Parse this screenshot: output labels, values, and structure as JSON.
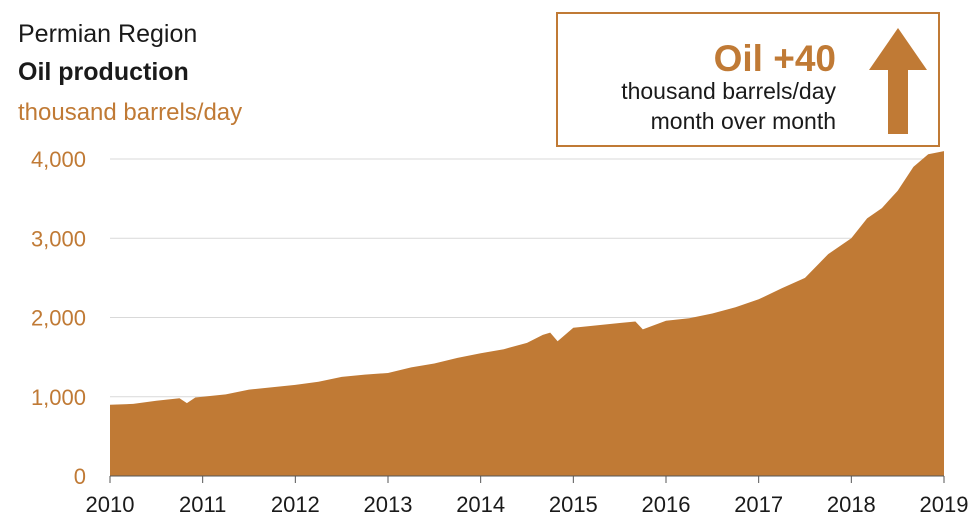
{
  "header": {
    "region": "Permian Region",
    "title": "Oil production",
    "unit": "thousand barrels/day"
  },
  "callout": {
    "headline": "Oil +40",
    "line1": "thousand barrels/day",
    "line2": "month over month",
    "arrow_icon": "up-arrow-icon"
  },
  "colors": {
    "area": "#c07a35",
    "accent_text": "#c07a35",
    "grid": "#d9d9d9",
    "text": "#1a1a1a"
  },
  "chart_data": {
    "type": "area",
    "title": "Oil production",
    "subtitle": "Permian Region",
    "xlabel": "",
    "ylabel": "thousand barrels/day",
    "ylim": [
      0,
      4000
    ],
    "xlim": [
      2010,
      2019
    ],
    "grid": true,
    "legend": "none",
    "yticks": [
      {
        "value": 0,
        "label": "0"
      },
      {
        "value": 1000,
        "label": "1,000"
      },
      {
        "value": 2000,
        "label": "2,000"
      },
      {
        "value": 3000,
        "label": "3,000"
      },
      {
        "value": 4000,
        "label": "4,000"
      }
    ],
    "xticks": [
      {
        "value": 2010,
        "label": "2010"
      },
      {
        "value": 2011,
        "label": "2011"
      },
      {
        "value": 2012,
        "label": "2012"
      },
      {
        "value": 2013,
        "label": "2013"
      },
      {
        "value": 2014,
        "label": "2014"
      },
      {
        "value": 2015,
        "label": "2015"
      },
      {
        "value": 2016,
        "label": "2016"
      },
      {
        "value": 2017,
        "label": "2017"
      },
      {
        "value": 2018,
        "label": "2018"
      },
      {
        "value": 2019,
        "label": "2019"
      }
    ],
    "series": [
      {
        "x": [
          2010.0,
          2010.25,
          2010.5,
          2010.75,
          2010.83,
          2010.92,
          2011.0,
          2011.25,
          2011.5,
          2011.75,
          2012.0,
          2012.25,
          2012.5,
          2012.75,
          2013.0,
          2013.25,
          2013.5,
          2013.75,
          2014.0,
          2014.25,
          2014.5,
          2014.67,
          2014.75,
          2014.83,
          2015.0,
          2015.25,
          2015.5,
          2015.67,
          2015.75,
          2016.0,
          2016.25,
          2016.5,
          2016.75,
          2017.0,
          2017.25,
          2017.5,
          2017.75,
          2018.0,
          2018.17,
          2018.33,
          2018.5,
          2018.67,
          2018.83,
          2019.0
        ],
        "values": [
          900,
          910,
          950,
          980,
          920,
          990,
          1000,
          1030,
          1090,
          1120,
          1150,
          1190,
          1250,
          1280,
          1300,
          1370,
          1420,
          1490,
          1550,
          1600,
          1680,
          1780,
          1810,
          1700,
          1870,
          1900,
          1930,
          1950,
          1850,
          1960,
          1990,
          2050,
          2130,
          2230,
          2370,
          2500,
          2800,
          3000,
          3250,
          3380,
          3600,
          3900,
          4060,
          4100
        ]
      }
    ]
  }
}
